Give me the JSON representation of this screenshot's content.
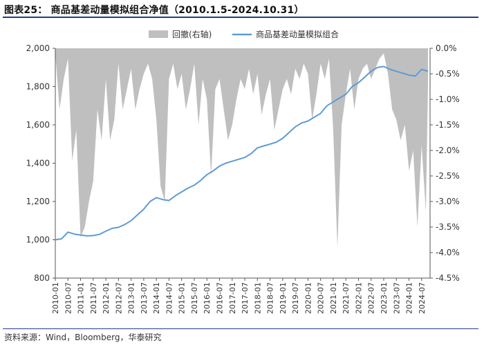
{
  "title": "图表25： 商品基差动量模拟组合净值（2010.1.5-2024.10.31）",
  "source": "资料来源：Wind，Bloomberg，华泰研究",
  "chart_data": {
    "type": "area+line",
    "title": "图表25： 商品基差动量模拟组合净值（2010.1.5-2024.10.31）",
    "legend_position": "top",
    "legend": [
      {
        "name": "回撤(右轴)",
        "type": "area",
        "color": "#bfbfbf"
      },
      {
        "name": "商品基差动量模拟组合",
        "type": "line",
        "color": "#5b9bd5"
      }
    ],
    "left_axis": {
      "min": 800,
      "max": 2000,
      "ticks": [
        800,
        1000,
        1200,
        1400,
        1600,
        1800,
        2000
      ],
      "tick_labels": [
        "800",
        "1,000",
        "1,200",
        "1,400",
        "1,600",
        "1,800",
        "2,000"
      ]
    },
    "right_axis": {
      "min": -4.5,
      "max": 0,
      "ticks": [
        -4.5,
        -4.0,
        -3.5,
        -3.0,
        -2.5,
        -2.0,
        -1.5,
        -1.0,
        -0.5,
        0.0
      ],
      "tick_labels": [
        "-4.5%",
        "-4.0%",
        "-3.5%",
        "-3.0%",
        "-2.5%",
        "-2.0%",
        "-1.5%",
        "-1.0%",
        "-0.5%",
        "0.0%"
      ]
    },
    "x_axis": {
      "min": "2010-01",
      "max": "2024-11",
      "tick_labels": [
        "2010-01",
        "2010-07",
        "2011-01",
        "2011-07",
        "2012-01",
        "2012-07",
        "2013-01",
        "2013-07",
        "2014-01",
        "2014-07",
        "2015-01",
        "2015-07",
        "2016-01",
        "2016-07",
        "2017-01",
        "2017-07",
        "2018-01",
        "2018-07",
        "2019-01",
        "2019-07",
        "2020-01",
        "2020-07",
        "2021-01",
        "2021-07",
        "2022-01",
        "2022-07",
        "2023-01",
        "2023-07",
        "2024-01",
        "2024-07"
      ]
    },
    "series_nav": {
      "name": "商品基差动量模拟组合",
      "x": [
        "2010-01",
        "2010-04",
        "2010-07",
        "2010-10",
        "2011-01",
        "2011-04",
        "2011-07",
        "2011-10",
        "2012-01",
        "2012-04",
        "2012-07",
        "2012-10",
        "2013-01",
        "2013-04",
        "2013-07",
        "2013-10",
        "2014-01",
        "2014-04",
        "2014-07",
        "2014-10",
        "2015-01",
        "2015-04",
        "2015-07",
        "2015-10",
        "2016-01",
        "2016-04",
        "2016-07",
        "2016-10",
        "2017-01",
        "2017-04",
        "2017-07",
        "2017-10",
        "2018-01",
        "2018-04",
        "2018-07",
        "2018-10",
        "2019-01",
        "2019-04",
        "2019-07",
        "2019-10",
        "2020-01",
        "2020-04",
        "2020-07",
        "2020-10",
        "2021-01",
        "2021-04",
        "2021-07",
        "2021-10",
        "2022-01",
        "2022-04",
        "2022-07",
        "2022-10",
        "2023-01",
        "2023-04",
        "2023-07",
        "2023-10",
        "2024-01",
        "2024-04",
        "2024-07",
        "2024-10"
      ],
      "y": [
        1000,
        1005,
        1040,
        1030,
        1025,
        1020,
        1022,
        1028,
        1045,
        1060,
        1065,
        1080,
        1100,
        1130,
        1160,
        1200,
        1220,
        1210,
        1205,
        1230,
        1250,
        1270,
        1285,
        1310,
        1340,
        1360,
        1385,
        1400,
        1410,
        1420,
        1430,
        1450,
        1480,
        1490,
        1500,
        1510,
        1530,
        1560,
        1590,
        1610,
        1620,
        1640,
        1660,
        1700,
        1720,
        1740,
        1760,
        1800,
        1820,
        1850,
        1880,
        1900,
        1905,
        1890,
        1880,
        1870,
        1860,
        1855,
        1890,
        1880
      ]
    },
    "series_drawdown": {
      "name": "回撤(右轴)",
      "x": [
        "2010-01",
        "2010-03",
        "2010-05",
        "2010-07",
        "2010-09",
        "2010-11",
        "2011-01",
        "2011-03",
        "2011-05",
        "2011-07",
        "2011-09",
        "2011-11",
        "2012-01",
        "2012-03",
        "2012-05",
        "2012-07",
        "2012-09",
        "2012-11",
        "2013-01",
        "2013-03",
        "2013-05",
        "2013-07",
        "2013-09",
        "2013-11",
        "2014-01",
        "2014-03",
        "2014-05",
        "2014-07",
        "2014-09",
        "2014-11",
        "2015-01",
        "2015-03",
        "2015-05",
        "2015-07",
        "2015-09",
        "2015-11",
        "2016-01",
        "2016-03",
        "2016-05",
        "2016-07",
        "2016-09",
        "2016-11",
        "2017-01",
        "2017-03",
        "2017-05",
        "2017-07",
        "2017-09",
        "2017-11",
        "2018-01",
        "2018-03",
        "2018-05",
        "2018-07",
        "2018-09",
        "2018-11",
        "2019-01",
        "2019-03",
        "2019-05",
        "2019-07",
        "2019-09",
        "2019-11",
        "2020-01",
        "2020-03",
        "2020-05",
        "2020-07",
        "2020-09",
        "2020-11",
        "2021-01",
        "2021-03",
        "2021-05",
        "2021-07",
        "2021-09",
        "2021-11",
        "2022-01",
        "2022-03",
        "2022-05",
        "2022-07",
        "2022-09",
        "2022-11",
        "2023-01",
        "2023-03",
        "2023-05",
        "2023-07",
        "2023-09",
        "2023-11",
        "2024-01",
        "2024-03",
        "2024-05",
        "2024-07",
        "2024-09",
        "2024-10"
      ],
      "y": [
        -0.1,
        -1.2,
        -0.6,
        -0.2,
        -2.2,
        -1.6,
        -3.7,
        -3.5,
        -3.0,
        -2.6,
        -1.2,
        -1.8,
        -0.6,
        -1.8,
        -1.4,
        -0.3,
        -1.2,
        -0.8,
        -0.4,
        -1.2,
        -0.8,
        -0.5,
        -0.3,
        -0.6,
        -1.4,
        -2.7,
        -3.0,
        -0.6,
        -0.3,
        -0.8,
        -0.5,
        -1.2,
        -0.8,
        -0.3,
        -1.5,
        -0.6,
        -1.0,
        -2.5,
        -0.8,
        -0.6,
        -1.2,
        -1.8,
        -1.5,
        -1.0,
        -0.6,
        -0.8,
        -0.4,
        -0.9,
        -0.5,
        -1.3,
        -0.9,
        -0.6,
        -1.6,
        -1.2,
        -0.8,
        -0.6,
        -0.9,
        -0.4,
        -0.6,
        -0.3,
        -0.5,
        -1.4,
        -0.9,
        -0.3,
        -0.6,
        -0.2,
        -1.6,
        -3.9,
        -1.5,
        -0.9,
        -0.4,
        -1.2,
        -0.6,
        -0.4,
        -0.3,
        -0.6,
        -0.4,
        -0.2,
        -0.1,
        -0.5,
        -1.2,
        -1.4,
        -1.8,
        -1.5,
        -2.4,
        -2.0,
        -3.5,
        -1.9,
        -3.2,
        -0.7
      ]
    }
  }
}
